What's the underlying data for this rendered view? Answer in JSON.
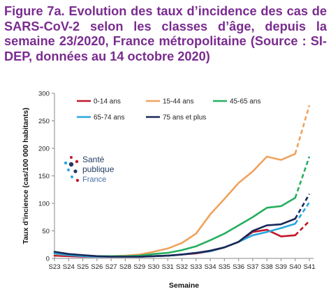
{
  "title": "Figure 7a. Evolution des taux d’incidence des cas de SARS-CoV-2 selon les classes d’âge, depuis la semaine 23/2020, France métropolitaine (Source : SI-DEP, données au 14 octobre 2020)",
  "logo": {
    "line1": "Santé",
    "line2": "publique",
    "line3": "France"
  },
  "chart_data": {
    "type": "line",
    "xlabel": "Semaine",
    "ylabel": "Taux d’incience (cas/100 000 habitants)",
    "ylim": [
      0,
      300
    ],
    "yticks": [
      0,
      50,
      100,
      150,
      200,
      250,
      300
    ],
    "categories": [
      "S23",
      "S24",
      "S25",
      "S26",
      "S27",
      "S28",
      "S29",
      "S30",
      "S31",
      "S32",
      "S33",
      "S34",
      "S35",
      "S36",
      "S37",
      "S38",
      "S39",
      "S40",
      "S41"
    ],
    "dashed_last_segment": true,
    "legend": "top, 3 columns",
    "series": [
      {
        "name": "0-14 ans",
        "color": "#c0182b",
        "values": [
          5,
          4,
          3,
          3,
          3,
          3,
          3,
          4,
          5,
          7,
          9,
          13,
          20,
          30,
          48,
          52,
          40,
          42,
          68
        ]
      },
      {
        "name": "15-44 ans",
        "color": "#f0a25e",
        "values": [
          8,
          6,
          5,
          4,
          4,
          5,
          7,
          12,
          18,
          28,
          45,
          80,
          108,
          137,
          158,
          185,
          179,
          190,
          278
        ]
      },
      {
        "name": "45-65 ans",
        "color": "#27ae5f",
        "values": [
          9,
          6,
          5,
          4,
          4,
          4,
          5,
          8,
          10,
          15,
          22,
          33,
          45,
          60,
          75,
          92,
          95,
          110,
          185
        ]
      },
      {
        "name": "65-74 ans",
        "color": "#2aa6df",
        "values": [
          9,
          6,
          4,
          3,
          3,
          3,
          3,
          4,
          5,
          7,
          10,
          13,
          20,
          30,
          42,
          48,
          55,
          63,
          102
        ]
      },
      {
        "name": "75 ans et plus",
        "color": "#1a2857",
        "values": [
          12,
          8,
          6,
          4,
          3,
          3,
          3,
          4,
          5,
          7,
          10,
          14,
          20,
          30,
          50,
          60,
          62,
          72,
          117
        ]
      }
    ]
  }
}
